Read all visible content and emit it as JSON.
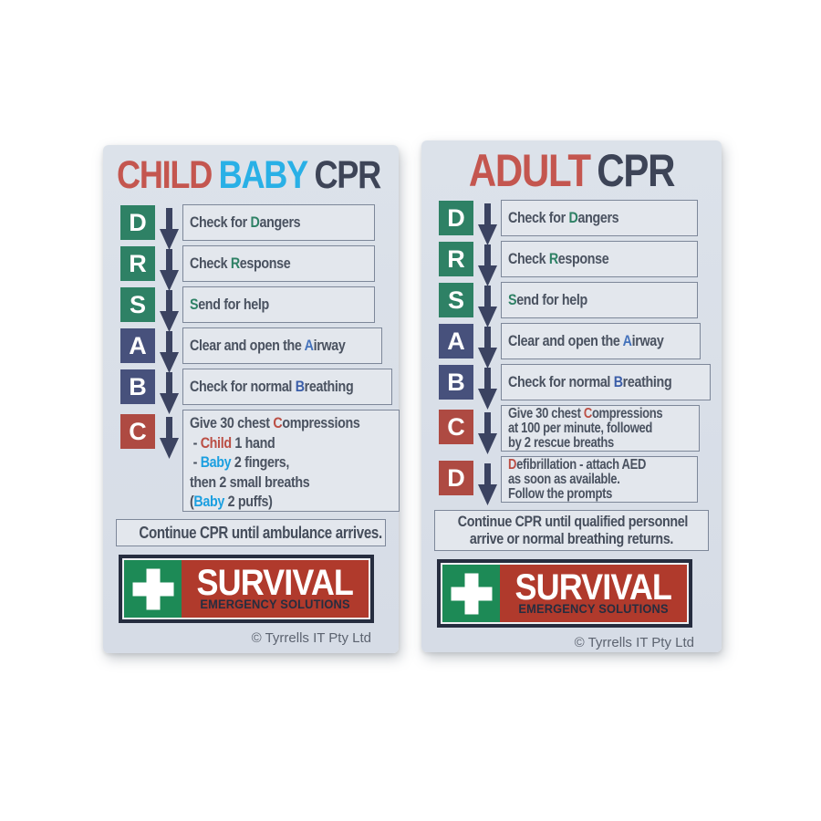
{
  "page": {
    "background": "#ffffff"
  },
  "palette": {
    "cardBg": "#d8dee7",
    "boxBg": "#e3e7ed",
    "boxBorder": "#7d8799",
    "green": "#2e8165",
    "navy": "#47517c",
    "red": "#ae4a42",
    "arrow": "#3b4361",
    "bodyText": "#4a5260",
    "titleRed": "#c4564f",
    "titleCyan": "#29b0e6",
    "titleDark": "#3d4457",
    "hlRed": "#bb4f45",
    "hlGreen": "#2e8165",
    "hlBlue": "#4472bb",
    "hlNavy": "#3a5da8",
    "hlCyan": "#1b9fe0",
    "logoNavy": "#262d3f",
    "logoGreen": "#1d8a56",
    "logoRed": "#b03a2c"
  },
  "logo": {
    "name": "SURVIVAL",
    "tagline": "EMERGENCY SOLUTIONS",
    "icon": "first-aid-cross"
  },
  "cards": [
    {
      "id": "child-baby-cpr",
      "title": [
        {
          "text": "CHILD",
          "color": "titleRed"
        },
        {
          "text": "BABY",
          "color": "titleCyan"
        },
        {
          "text": "CPR",
          "color": "titleDark"
        }
      ],
      "rows": [
        {
          "letter": "D",
          "color": "green",
          "size": "normal",
          "lines": [
            [
              {
                "t": "Check for "
              },
              {
                "t": "D",
                "c": "hlGreen"
              },
              {
                "t": "angers"
              }
            ]
          ]
        },
        {
          "letter": "R",
          "color": "green",
          "size": "normal",
          "lines": [
            [
              {
                "t": "Check "
              },
              {
                "t": "R",
                "c": "hlGreen"
              },
              {
                "t": "esponse"
              }
            ]
          ]
        },
        {
          "letter": "S",
          "color": "green",
          "size": "normal",
          "lines": [
            [
              {
                "t": "S",
                "c": "hlGreen"
              },
              {
                "t": "end for help"
              }
            ]
          ]
        },
        {
          "letter": "A",
          "color": "navy",
          "size": "normal",
          "lines": [
            [
              {
                "t": "Clear and open the "
              },
              {
                "t": "A",
                "c": "hlBlue"
              },
              {
                "t": "irway"
              }
            ]
          ]
        },
        {
          "letter": "B",
          "color": "navy",
          "size": "normal",
          "lines": [
            [
              {
                "t": "Check for normal "
              },
              {
                "t": "B",
                "c": "hlNavy"
              },
              {
                "t": "reathing"
              }
            ]
          ]
        },
        {
          "letter": "C",
          "color": "red",
          "size": "tall",
          "lines": [
            [
              {
                "t": "Give 30 chest "
              },
              {
                "t": "C",
                "c": "hlRed"
              },
              {
                "t": "ompressions"
              }
            ],
            [
              {
                "t": " - "
              },
              {
                "t": "Child",
                "c": "hlRed"
              },
              {
                "t": " 1 hand"
              }
            ],
            [
              {
                "t": " - "
              },
              {
                "t": "Baby",
                "c": "hlCyan"
              },
              {
                "t": " 2 fingers,"
              }
            ],
            [
              {
                "t": "then 2 small breaths"
              }
            ],
            [
              {
                "t": "("
              },
              {
                "t": "Baby",
                "c": "hlCyan"
              },
              {
                "t": " 2 puffs)"
              }
            ]
          ]
        }
      ],
      "footer_lines": [
        "Continue CPR until ambulance arrives."
      ],
      "copyright": "© Tyrrells IT Pty Ltd"
    },
    {
      "id": "adult-cpr",
      "title": [
        {
          "text": "ADULT",
          "color": "titleRed"
        },
        {
          "text": "CPR",
          "color": "titleDark"
        }
      ],
      "rows": [
        {
          "letter": "D",
          "color": "green",
          "size": "normal",
          "lines": [
            [
              {
                "t": "Check for "
              },
              {
                "t": "D",
                "c": "hlGreen"
              },
              {
                "t": "angers"
              }
            ]
          ]
        },
        {
          "letter": "R",
          "color": "green",
          "size": "normal",
          "lines": [
            [
              {
                "t": "Check "
              },
              {
                "t": "R",
                "c": "hlGreen"
              },
              {
                "t": "esponse"
              }
            ]
          ]
        },
        {
          "letter": "S",
          "color": "green",
          "size": "normal",
          "lines": [
            [
              {
                "t": "S",
                "c": "hlGreen"
              },
              {
                "t": "end for help"
              }
            ]
          ]
        },
        {
          "letter": "A",
          "color": "navy",
          "size": "normal",
          "lines": [
            [
              {
                "t": "Clear and open the "
              },
              {
                "t": "A",
                "c": "hlBlue"
              },
              {
                "t": "irway"
              }
            ]
          ]
        },
        {
          "letter": "B",
          "color": "navy",
          "size": "normal",
          "lines": [
            [
              {
                "t": "Check for normal "
              },
              {
                "t": "B",
                "c": "hlNavy"
              },
              {
                "t": "reathing"
              }
            ]
          ]
        },
        {
          "letter": "C",
          "color": "red",
          "size": "compact",
          "lines": [
            [
              {
                "t": "Give 30 chest "
              },
              {
                "t": "C",
                "c": "hlRed"
              },
              {
                "t": "ompressions"
              }
            ],
            [
              {
                "t": "at 100 per minute, followed"
              }
            ],
            [
              {
                "t": "by 2 rescue breaths"
              }
            ]
          ]
        },
        {
          "letter": "D",
          "color": "red",
          "size": "compact",
          "lines": [
            [
              {
                "t": "D",
                "c": "hlRed"
              },
              {
                "t": "efibrillation - attach AED"
              }
            ],
            [
              {
                "t": "as soon as available."
              }
            ],
            [
              {
                "t": "Follow the prompts"
              }
            ]
          ]
        }
      ],
      "footer_lines": [
        "Continue CPR until qualified personnel",
        "arrive or normal breathing returns."
      ],
      "copyright": "© Tyrrells IT Pty Ltd"
    }
  ]
}
